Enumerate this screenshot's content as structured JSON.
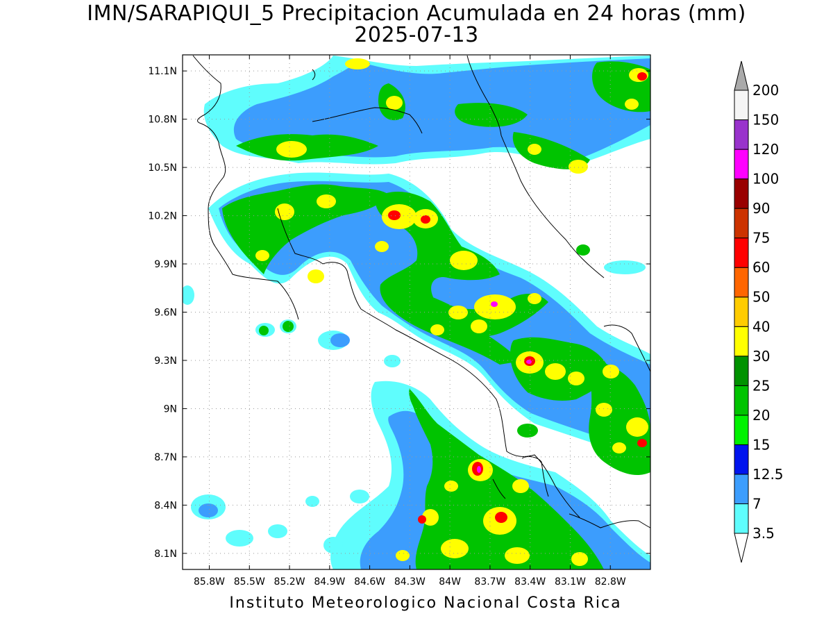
{
  "title_line1": "IMN/SARAPIQUI_5 Precipitacion Acumulada en 24 horas (mm)",
  "title_line2": "2025-07-13",
  "footer": "Instituto Meteorologico Nacional Costa Rica",
  "map": {
    "lon_range": [
      -86.0,
      -82.5
    ],
    "lat_range": [
      8.0,
      11.2
    ],
    "lon_ticks": [
      "85.8W",
      "85.5W",
      "85.2W",
      "84.9W",
      "84.6W",
      "84.3W",
      "84W",
      "83.7W",
      "83.4W",
      "83.1W",
      "82.8W"
    ],
    "lat_ticks": [
      "8.1N",
      "8.4N",
      "8.7N",
      "9N",
      "9.3N",
      "9.6N",
      "9.9N",
      "10.2N",
      "10.5N",
      "10.8N",
      "11.1N"
    ],
    "grid": "dotted"
  },
  "colorbar": {
    "labels": [
      "3.5",
      "7",
      "12.5",
      "15",
      "20",
      "25",
      "30",
      "40",
      "50",
      "60",
      "75",
      "90",
      "100",
      "120",
      "150",
      "200"
    ],
    "colors": [
      "#5ffdfd",
      "#3c9dfd",
      "#0014ee",
      "#00f200",
      "#00c300",
      "#009200",
      "#ffff00",
      "#ffcc00",
      "#ff6600",
      "#ff0000",
      "#cc3300",
      "#990000",
      "#ff00ff",
      "#9933cc",
      "#f5f5f5",
      "#aaaaaa"
    ]
  }
}
